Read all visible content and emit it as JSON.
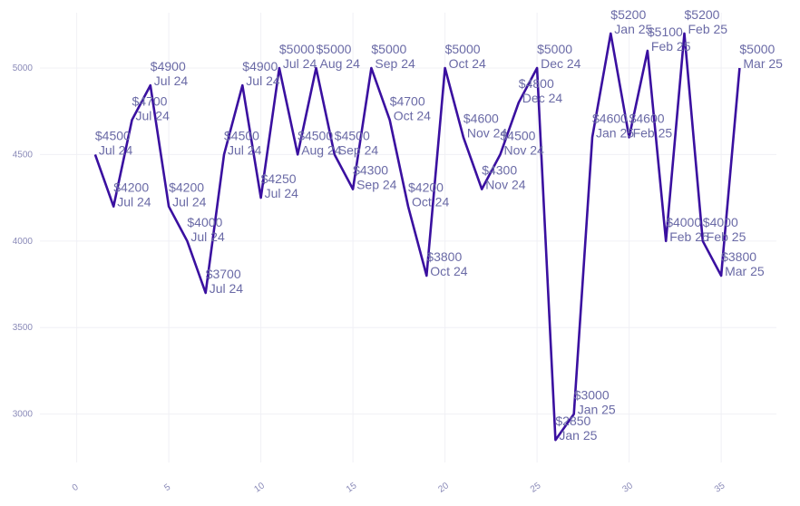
{
  "chart_data": {
    "type": "line",
    "title": "",
    "xlabel": "",
    "ylabel": "",
    "xlim": [
      -2,
      38
    ],
    "ylim": [
      2720,
      5320
    ],
    "x_ticks": [
      0,
      5,
      10,
      15,
      20,
      25,
      30,
      35
    ],
    "x_tick_labels": [
      "0",
      "5",
      "10",
      "15",
      "20",
      "25",
      "30",
      "35"
    ],
    "y_ticks": [
      3000,
      3500,
      4000,
      4500,
      5000
    ],
    "y_tick_labels": [
      "3000",
      "3500",
      "4000",
      "4500",
      "5000"
    ],
    "grid": true,
    "line_color": "#3a10a0",
    "label_color": "#6a6aa6",
    "series": [
      {
        "x": [
          1,
          2,
          3,
          4,
          5,
          6,
          7,
          8,
          9,
          10,
          11,
          12,
          13,
          14,
          15,
          16,
          17,
          18,
          19,
          20,
          21,
          22,
          23,
          24,
          25,
          26,
          27,
          28,
          29,
          30,
          31,
          32,
          33,
          34,
          35,
          36
        ],
        "values": [
          4500,
          4200,
          4700,
          4900,
          4200,
          4000,
          3700,
          4500,
          4900,
          4250,
          5000,
          4500,
          5000,
          4500,
          4300,
          5000,
          4700,
          4200,
          3800,
          5000,
          4600,
          4300,
          4500,
          4800,
          5000,
          2850,
          3000,
          4600,
          5200,
          4600,
          5100,
          4000,
          5200,
          4000,
          3800,
          5000
        ]
      }
    ],
    "data_labels": [
      [
        "$4500",
        "Jul 24"
      ],
      [
        "$4200",
        "Jul 24"
      ],
      [
        "$4700",
        "Jul 24"
      ],
      [
        "$4900",
        "Jul 24"
      ],
      [
        "$4200",
        "Jul 24"
      ],
      [
        "$4000",
        "Jul 24"
      ],
      [
        "$3700",
        "Jul 24"
      ],
      [
        "$4500",
        "Jul 24"
      ],
      [
        "$4900",
        "Jul 24"
      ],
      [
        "$4250",
        "Jul 24"
      ],
      [
        "$5000",
        "Jul 24"
      ],
      [
        "$4500",
        "Aug 24"
      ],
      [
        "$5000",
        "Aug 24"
      ],
      [
        "$4500",
        "Sep 24"
      ],
      [
        "$4300",
        "Sep 24"
      ],
      [
        "$5000",
        "Sep 24"
      ],
      [
        "$4700",
        "Oct 24"
      ],
      [
        "$4200",
        "Oct 24"
      ],
      [
        "$3800",
        "Oct 24"
      ],
      [
        "$5000",
        "Oct 24"
      ],
      [
        "$4600",
        "Nov 24"
      ],
      [
        "$4300",
        "Nov 24"
      ],
      [
        "$4500",
        "Nov 24"
      ],
      [
        "$4800",
        "Dec 24"
      ],
      [
        "$5000",
        "Dec 24"
      ],
      [
        "$2850",
        "Jan 25"
      ],
      [
        "$3000",
        "Jan 25"
      ],
      [
        "$4600",
        "Jan 25"
      ],
      [
        "$5200",
        "Jan 25"
      ],
      [
        "$4600",
        "Feb 25"
      ],
      [
        "$5100",
        "Feb 25"
      ],
      [
        "$4000",
        "Feb 25"
      ],
      [
        "$5200",
        "Feb 25"
      ],
      [
        "$4000",
        "Feb 25"
      ],
      [
        "$3800",
        "Mar 25"
      ],
      [
        "$5000",
        "Mar 25"
      ]
    ]
  }
}
